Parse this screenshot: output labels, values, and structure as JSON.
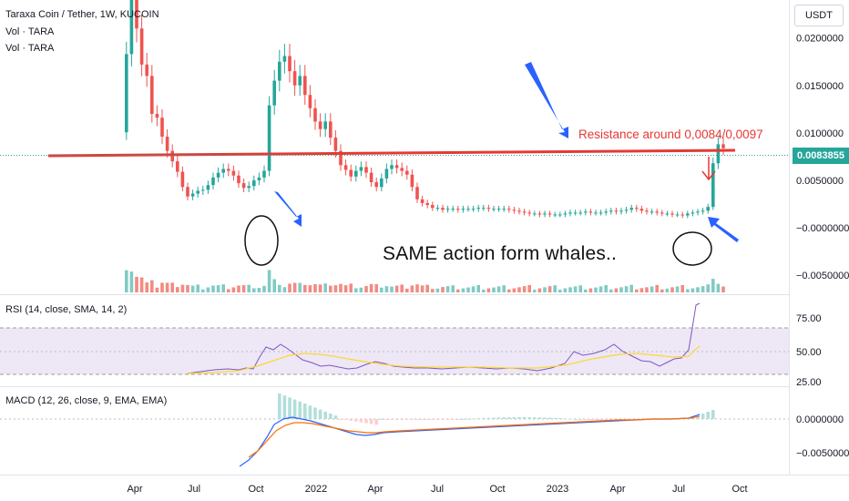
{
  "header": {
    "symbol_line": "Taraxa Coin / Tether, 1W, KUCOIN",
    "vol_line_1": "Vol · TARA",
    "vol_line_2": "Vol · TARA",
    "currency": "USDT"
  },
  "price_axis": {
    "ticks": [
      "0.0200000",
      "0.0150000",
      "0.0100000",
      "0.0050000",
      "−0.0000000",
      "−0.0050000"
    ],
    "last_price": "0.0083855"
  },
  "rsi_panel": {
    "label": "RSI (14, close, SMA, 14, 2)",
    "ticks": [
      "75.00",
      "50.00",
      "25.00"
    ]
  },
  "macd_panel": {
    "label": "MACD (12, 26, close, 9, EMA, EMA)",
    "ticks": [
      "0.0000000",
      "−0.0050000"
    ]
  },
  "time_axis": {
    "ticks": [
      "Apr",
      "Jul",
      "Oct",
      "2022",
      "Apr",
      "Jul",
      "Oct",
      "2023",
      "Apr",
      "Jul",
      "Oct"
    ]
  },
  "annotations": {
    "resistance": "Resistance around 0,0084/0,0097",
    "whales": "SAME action form whales.."
  },
  "colors": {
    "up": "#26a69a",
    "down": "#ef5350",
    "resistance_line": "#e53935",
    "arrow": "#2962ff",
    "rsi_line": "#7e57c2",
    "rsi_ma": "#fdd835",
    "macd_line": "#2962ff",
    "signal_line": "#ff6d00",
    "rsi_band": "#ede7f6"
  },
  "chart_data": {
    "type": "candlestick",
    "title": "Taraxa Coin / Tether, 1W, KUCOIN",
    "y_range": [
      -0.007,
      0.024
    ],
    "resistance_level": 0.0084,
    "candles_close": [
      0.0183,
      0.0255,
      0.021,
      0.0172,
      0.016,
      0.012,
      0.0116,
      0.0096,
      0.0081,
      0.007,
      0.0059,
      0.0043,
      0.0033,
      0.0036,
      0.0039,
      0.004,
      0.0045,
      0.0053,
      0.0058,
      0.0062,
      0.006,
      0.0055,
      0.0047,
      0.0042,
      0.0044,
      0.005,
      0.0053,
      0.006,
      0.0129,
      0.0155,
      0.0175,
      0.0181,
      0.0165,
      0.015,
      0.016,
      0.014,
      0.0126,
      0.0112,
      0.0104,
      0.0112,
      0.0095,
      0.0081,
      0.0066,
      0.0061,
      0.0054,
      0.006,
      0.0064,
      0.0058,
      0.0048,
      0.0043,
      0.0052,
      0.0062,
      0.0066,
      0.0063,
      0.006,
      0.0056,
      0.0043,
      0.003,
      0.0026,
      0.0024,
      0.0021,
      0.0021,
      0.0019,
      0.002,
      0.002,
      0.0019,
      0.002,
      0.002,
      0.002,
      0.0021,
      0.0021,
      0.002,
      0.002,
      0.002,
      0.002,
      0.0019,
      0.0018,
      0.0017,
      0.0016,
      0.0015,
      0.0015,
      0.0014,
      0.0015,
      0.0014,
      0.0014,
      0.0014,
      0.0015,
      0.0016,
      0.0016,
      0.0016,
      0.0017,
      0.0016,
      0.0016,
      0.0016,
      0.0017,
      0.0018,
      0.0017,
      0.0018,
      0.0019,
      0.0021,
      0.002,
      0.0018,
      0.0017,
      0.0017,
      0.0016,
      0.0015,
      0.0015,
      0.0014,
      0.0014,
      0.0013,
      0.0015,
      0.0016,
      0.0017,
      0.0018,
      0.0022,
      0.0068,
      0.0088,
      0.0083855
    ]
  }
}
